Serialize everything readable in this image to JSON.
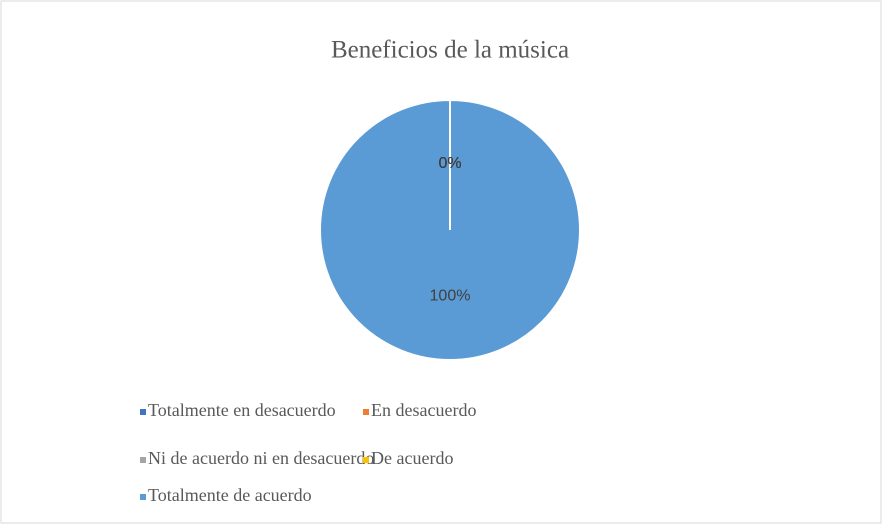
{
  "chart_data": {
    "type": "pie",
    "title": "Beneficios de la música",
    "categories": [
      "Totalmente en desacuerdo",
      "En desacuerdo",
      "Ni de acuerdo ni en desacuerdo",
      "De acuerdo",
      "Totalmente de acuerdo"
    ],
    "values": [
      0,
      0,
      0,
      0,
      100
    ],
    "value_labels": [
      "0%",
      "0%",
      "0%",
      "0%",
      "100%"
    ],
    "colors": [
      "#4472c4",
      "#ed7d31",
      "#a5a5a5",
      "#ffc000",
      "#5b9bd5"
    ],
    "legend": "bottom"
  }
}
